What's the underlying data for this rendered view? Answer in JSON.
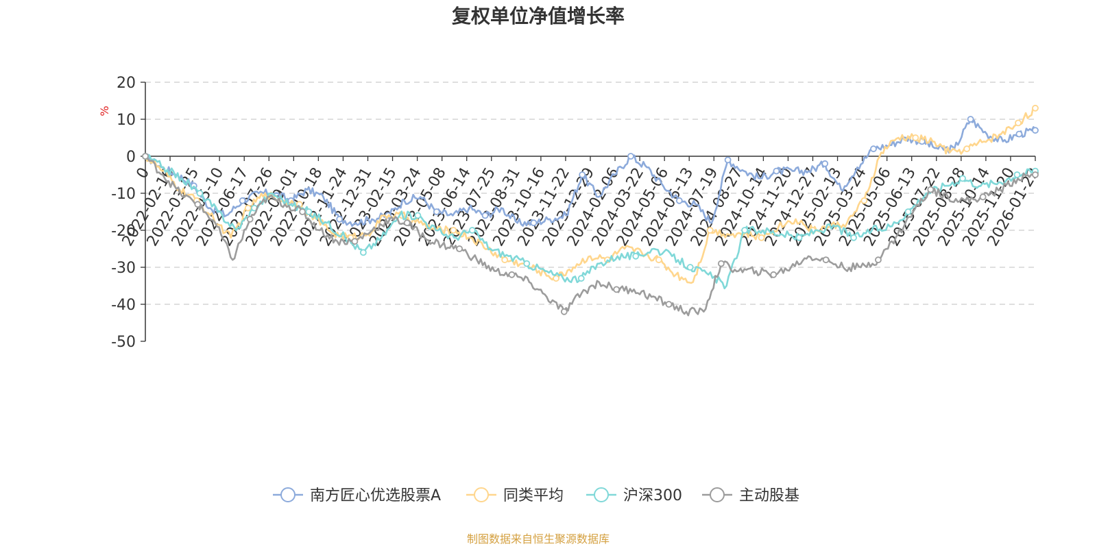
{
  "chart_data": {
    "type": "line",
    "title": "复权单位净值增长率",
    "ylabel": "%",
    "ylim": [
      -50,
      20
    ],
    "yticks": [
      -50,
      -40,
      -30,
      -20,
      -10,
      0,
      10,
      20
    ],
    "grid": true,
    "legend_position": "bottom",
    "x_tick_labels": [
      "0",
      "2022-02-16",
      "2022-03-25",
      "2022-05-10",
      "2022-06-17",
      "2022-07-26",
      "2022-09-01",
      "2022-10-18",
      "2022-11-24",
      "2022-12-31",
      "2023-02-15",
      "2023-03-24",
      "2023-05-08",
      "2023-06-14",
      "2023-07-25",
      "2023-08-31",
      "2023-10-16",
      "2023-11-22",
      "2023-12-29",
      "2024-02-06",
      "2024-03-22",
      "2024-05-06",
      "2024-06-13",
      "2024-07-19",
      "2024-08-27",
      "2024-10-14",
      "2024-11-20",
      "2024-12-27",
      "2025-02-13",
      "2025-03-24",
      "2025-05-06",
      "2025-06-13",
      "2025-07-22",
      "2025-08-28",
      "2025-10-14",
      "2025-11-20",
      "2026-01-22"
    ],
    "series": [
      {
        "name": "南方匠心优选股票A",
        "color": "#8caadb",
        "values": [
          0,
          -3,
          -5,
          -8,
          -14,
          -16,
          -12,
          -10,
          -10,
          -12,
          -9,
          -11,
          -17,
          -18,
          -17,
          -16,
          -12,
          -11,
          -15,
          -16,
          -14,
          -16,
          -14,
          -18,
          -18,
          -17,
          -16,
          -5,
          -11,
          -5,
          0,
          -3,
          -8,
          -12,
          -13,
          -18,
          -1,
          -4,
          -6,
          -4,
          -4,
          -4,
          -2,
          -9,
          -3,
          2,
          3,
          5,
          4,
          2,
          2,
          10,
          6,
          4,
          6,
          7
        ]
      },
      {
        "name": "同类平均",
        "color": "#ffd68d",
        "values": [
          0,
          -4,
          -9,
          -12,
          -17,
          -22,
          -14,
          -10,
          -12,
          -13,
          -17,
          -21,
          -22,
          -21,
          -16,
          -16,
          -18,
          -20,
          -20,
          -22,
          -25,
          -28,
          -29,
          -31,
          -33,
          -30,
          -27,
          -28,
          -25,
          -26,
          -28,
          -32,
          -34,
          -20,
          -21,
          -21,
          -22,
          -19,
          -17,
          -20,
          -19,
          -18,
          -12,
          1,
          5,
          5,
          4,
          1,
          2,
          4,
          6,
          9,
          13
        ]
      },
      {
        "name": "沪深300",
        "color": "#80d8d8",
        "values": [
          0,
          -3,
          -6,
          -10,
          -15,
          -20,
          -14,
          -10,
          -13,
          -15,
          -18,
          -22,
          -26,
          -22,
          -16,
          -16,
          -20,
          -22,
          -20,
          -25,
          -27,
          -29,
          -31,
          -33,
          -33,
          -29,
          -27,
          -27,
          -25,
          -27,
          -30,
          -32,
          -35,
          -20,
          -20,
          -21,
          -22,
          -20,
          -19,
          -22,
          -20,
          -19,
          -15,
          -10,
          -8,
          -6,
          -8,
          -7,
          -5,
          -4
        ]
      },
      {
        "name": "主动股基",
        "color": "#9c9c9c",
        "values": [
          0,
          -5,
          -10,
          -13,
          -18,
          -28,
          -17,
          -11,
          -13,
          -15,
          -20,
          -23,
          -23,
          -20,
          -17,
          -18,
          -22,
          -24,
          -25,
          -28,
          -31,
          -32,
          -34,
          -38,
          -42,
          -37,
          -34,
          -36,
          -36,
          -38,
          -40,
          -42,
          -42,
          -29,
          -31,
          -31,
          -32,
          -30,
          -27,
          -28,
          -30,
          -30,
          -28,
          -22,
          -15,
          -9,
          -11,
          -12,
          -11,
          -9,
          -6,
          -5
        ]
      }
    ]
  },
  "footer": {
    "source": "制图数据来自恒生聚源数据库"
  },
  "colors": {
    "title": "#333333",
    "axis": "#333333",
    "grid": "#cccccc",
    "unit": "#e02020",
    "source": "#d4a040"
  }
}
